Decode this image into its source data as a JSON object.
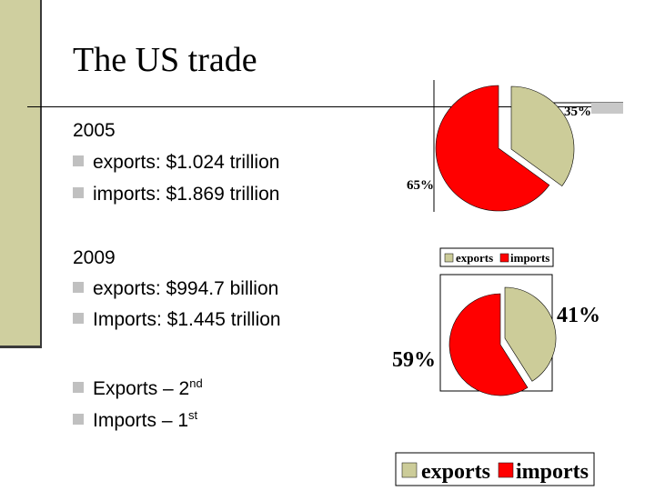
{
  "slide": {
    "title": "The US trade"
  },
  "text_block": {
    "year_2005": "2005",
    "exports_2005": "exports: $1.024 trillion",
    "imports_2005": "imports: $1.869 trillion",
    "year_2009": "2009",
    "exports_2009": "exports: $994.7 billion",
    "imports_2009": "Imports: $1.445 trillion",
    "rank_exports_label": "Exports – 2",
    "rank_exports_sup": "nd",
    "rank_imports_label": "Imports – 1",
    "rank_imports_sup": "st"
  },
  "colors": {
    "exports": "#cccc99",
    "imports": "#ff0000",
    "sidebar": "#cfcf9f",
    "bullet": "#c0c0c0"
  },
  "chart_data": [
    {
      "type": "pie",
      "categories": [
        "exports",
        "imports"
      ],
      "values": [
        35,
        65
      ],
      "data_labels": [
        "35%",
        "65%"
      ],
      "exploded": "exports",
      "legend": [
        "exports",
        "imports"
      ]
    },
    {
      "type": "pie",
      "categories": [
        "exports",
        "imports"
      ],
      "values": [
        41,
        59
      ],
      "data_labels": [
        "41%",
        "59%"
      ],
      "exploded": "exports",
      "legend": [
        "exports",
        "imports"
      ],
      "legend_placement": "bottom"
    }
  ]
}
